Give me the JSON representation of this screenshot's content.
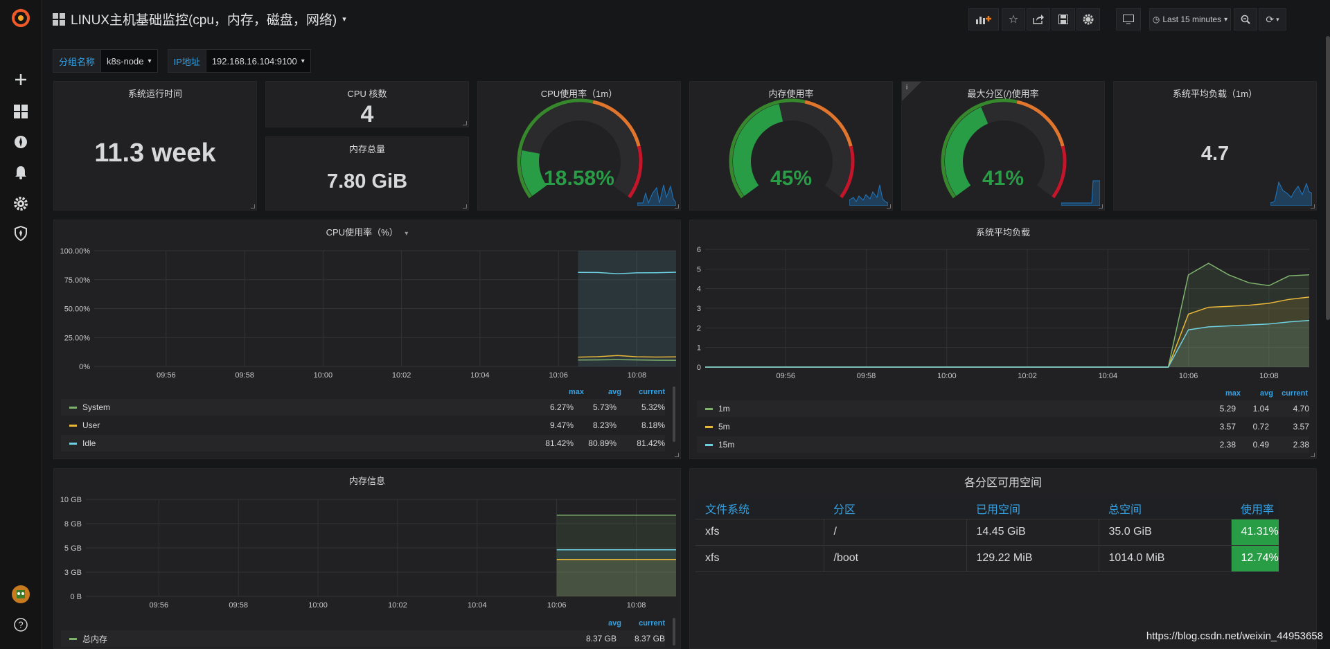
{
  "header": {
    "title": "LINUX主机基础监控(cpu，内存，磁盘，网络)",
    "time_range": "Last 15 minutes"
  },
  "variables": [
    {
      "label": "分组名称",
      "value": "k8s-node"
    },
    {
      "label": "IP地址",
      "value": "192.168.16.104:9100"
    }
  ],
  "stats": {
    "uptime": {
      "title": "系统运行时间",
      "value": "11.3 week"
    },
    "cpu_cores": {
      "title": "CPU 核数",
      "value": "4"
    },
    "mem_total": {
      "title": "内存总量",
      "value": "7.80 GiB"
    },
    "cpu_usage": {
      "title": "CPU使用率（1m）",
      "value": "18.58%",
      "fraction": 0.1858
    },
    "mem_usage": {
      "title": "内存使用率",
      "value": "45%",
      "fraction": 0.45
    },
    "disk_usage": {
      "title": "最大分区(/)使用率",
      "value": "41%",
      "fraction": 0.41
    },
    "load": {
      "title": "系统平均负载（1m）",
      "value": "4.7"
    }
  },
  "cpu_panel": {
    "title": "CPU使用率（%）",
    "legend_headers": {
      "max": "max",
      "avg": "avg",
      "current": "current"
    },
    "legend": [
      {
        "name": "System",
        "color": "#7eb26d",
        "max": "6.27%",
        "avg": "5.73%",
        "current": "5.32%"
      },
      {
        "name": "User",
        "color": "#eab839",
        "max": "9.47%",
        "avg": "8.23%",
        "current": "8.18%"
      },
      {
        "name": "Idle",
        "color": "#6ed0e0",
        "max": "81.42%",
        "avg": "80.89%",
        "current": "81.42%"
      }
    ]
  },
  "load_panel": {
    "title": "系统平均负载",
    "legend_headers": {
      "max": "max",
      "avg": "avg",
      "current": "current"
    },
    "legend": [
      {
        "name": "1m",
        "color": "#7eb26d",
        "max": "5.29",
        "avg": "1.04",
        "current": "4.70"
      },
      {
        "name": "5m",
        "color": "#eab839",
        "max": "3.57",
        "avg": "0.72",
        "current": "3.57"
      },
      {
        "name": "15m",
        "color": "#6ed0e0",
        "max": "2.38",
        "avg": "0.49",
        "current": "2.38"
      }
    ]
  },
  "mem_panel": {
    "title": "内存信息",
    "legend_headers": {
      "avg": "avg",
      "current": "current"
    },
    "legend": [
      {
        "name": "总内存",
        "color": "#7eb26d",
        "avg": "8.37 GB",
        "current": "8.37 GB"
      }
    ]
  },
  "disk_panel": {
    "title": "各分区可用空间",
    "columns": [
      "文件系统",
      "分区",
      "已用空间",
      "总空间",
      "使用率"
    ],
    "rows": [
      [
        "xfs",
        "/",
        "14.45 GiB",
        "35.0 GiB",
        "41.31%"
      ],
      [
        "xfs",
        "/boot",
        "129.22 MiB",
        "1014.0 MiB",
        "12.74%"
      ]
    ]
  },
  "chart_data": [
    {
      "type": "line",
      "title": "CPU使用率（%）",
      "x": [
        "10:06:30",
        "10:07:00",
        "10:07:30",
        "10:08:00",
        "10:08:30",
        "10:09:00"
      ],
      "xticks": [
        "09:56",
        "09:58",
        "10:00",
        "10:02",
        "10:04",
        "10:06",
        "10:08"
      ],
      "yticks": [
        "0%",
        "25.00%",
        "50.00%",
        "75.00%",
        "100.00%"
      ],
      "ylim": [
        0,
        100
      ],
      "series": [
        {
          "name": "System",
          "values": [
            5.5,
            5.6,
            5.8,
            5.6,
            5.4,
            5.32
          ]
        },
        {
          "name": "User",
          "values": [
            8.0,
            8.4,
            9.4,
            8.3,
            8.1,
            8.18
          ]
        },
        {
          "name": "Idle",
          "values": [
            81.3,
            81.2,
            80.1,
            80.9,
            81.0,
            81.42
          ]
        }
      ]
    },
    {
      "type": "line",
      "title": "系统平均负载",
      "x": [
        "09:54",
        "10:05:30",
        "10:06:00",
        "10:06:30",
        "10:07:00",
        "10:07:30",
        "10:08:00",
        "10:08:30",
        "10:09:00"
      ],
      "xticks": [
        "09:56",
        "09:58",
        "10:00",
        "10:02",
        "10:04",
        "10:06",
        "10:08"
      ],
      "yticks": [
        "0",
        "1",
        "2",
        "3",
        "4",
        "5",
        "6"
      ],
      "ylim": [
        0,
        6
      ],
      "series": [
        {
          "name": "1m",
          "values": [
            0,
            0,
            4.7,
            5.29,
            4.7,
            4.3,
            4.15,
            4.65,
            4.7
          ]
        },
        {
          "name": "5m",
          "values": [
            0,
            0,
            2.7,
            3.05,
            3.1,
            3.15,
            3.25,
            3.45,
            3.57
          ]
        },
        {
          "name": "15m",
          "values": [
            0,
            0,
            1.9,
            2.05,
            2.1,
            2.15,
            2.2,
            2.3,
            2.38
          ]
        }
      ]
    },
    {
      "type": "area",
      "title": "内存信息",
      "x": [
        "10:06:00",
        "10:07:00",
        "10:08:00",
        "10:09:00"
      ],
      "xticks": [
        "09:56",
        "09:58",
        "10:00",
        "10:02",
        "10:04",
        "10:06",
        "10:08"
      ],
      "yticks": [
        "0 B",
        "3 GB",
        "5 GB",
        "8 GB",
        "10 GB"
      ],
      "ylim": [
        0,
        10
      ],
      "series": [
        {
          "name": "总内存",
          "values": [
            8.37,
            8.37,
            8.37,
            8.37
          ]
        },
        {
          "values": [
            4.8,
            4.8,
            4.8,
            4.8
          ]
        },
        {
          "values": [
            3.8,
            3.8,
            3.8,
            3.8
          ]
        }
      ]
    }
  ],
  "watermark": "https://blog.csdn.net/weixin_44953658"
}
